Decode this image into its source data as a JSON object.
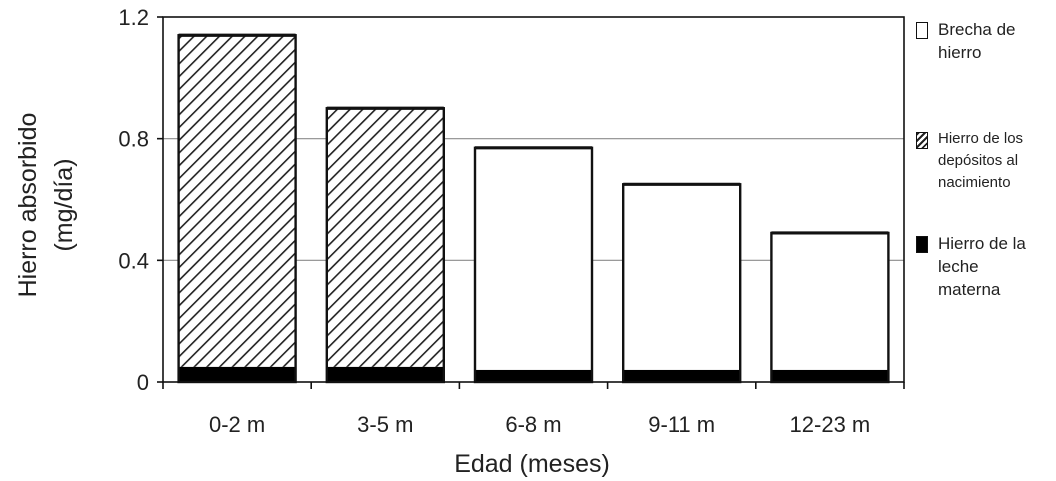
{
  "chart_data": {
    "type": "bar",
    "stacked": true,
    "categories": [
      "0-2 m",
      "3-5 m",
      "6-8 m",
      "9-11 m",
      "12-23 m"
    ],
    "series": [
      {
        "name": "Hierro de la leche materna",
        "key": "leche",
        "fill": "solid-black",
        "values": [
          0.05,
          0.05,
          0.04,
          0.04,
          0.04
        ]
      },
      {
        "name": "Hierro de los depósitos al nacimiento",
        "key": "depositos",
        "fill": "hatched",
        "values": [
          1.09,
          0.85,
          0,
          0,
          0
        ]
      },
      {
        "name": "Brecha de hierro",
        "key": "brecha",
        "fill": "white",
        "values": [
          0,
          0,
          0.73,
          0.61,
          0.45
        ]
      }
    ],
    "totals": [
      1.14,
      0.9,
      0.77,
      0.65,
      0.49
    ],
    "yticks": [
      "0",
      "0.4",
      "0.8",
      "1.2"
    ],
    "ylim": [
      0,
      1.2
    ],
    "ylabel_line1": "Hierro absorbido",
    "ylabel_line2": "(mg/día)",
    "xlabel": "Edad (meses)",
    "gridlines": [
      0.4,
      0.8
    ],
    "legend_position": "right",
    "colors": {
      "bar_stroke": "#111111",
      "solid": "#000000",
      "grid": "#8c8c8c",
      "hatch": "#222222"
    }
  }
}
